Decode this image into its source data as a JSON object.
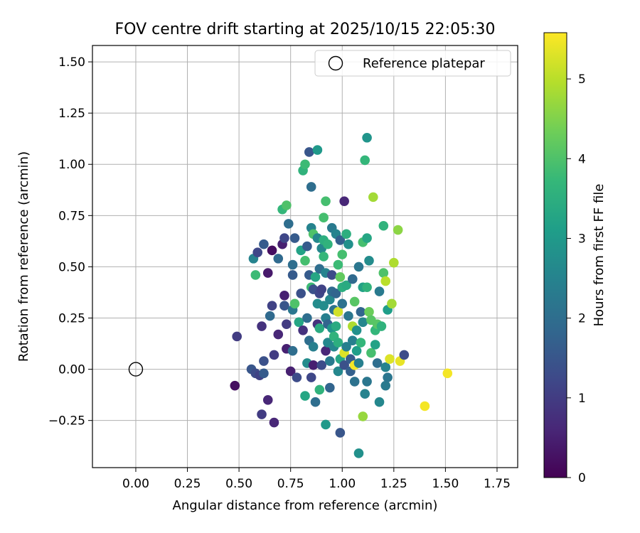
{
  "chart_data": {
    "type": "scatter",
    "title": "FOV centre drift starting at 2025/10/15 22:05:30",
    "xlabel": "Angular distance from reference (arcmin)",
    "ylabel": "Rotation from reference (arcmin)",
    "xlim": [
      -0.21,
      1.85
    ],
    "ylim": [
      -0.48,
      1.58
    ],
    "xticks": [
      0.0,
      0.25,
      0.5,
      0.75,
      1.0,
      1.25,
      1.5,
      1.75
    ],
    "xtick_labels": [
      "0.00",
      "0.25",
      "0.50",
      "0.75",
      "1.00",
      "1.25",
      "1.50",
      "1.75"
    ],
    "yticks": [
      -0.25,
      0.0,
      0.25,
      0.5,
      0.75,
      1.0,
      1.25,
      1.5
    ],
    "ytick_labels": [
      "−0.25",
      "0.00",
      "0.25",
      "0.50",
      "0.75",
      "1.00",
      "1.25",
      "1.50"
    ],
    "grid": true,
    "legend": {
      "position": "top-right",
      "entries": [
        "Reference platepar"
      ]
    },
    "reference_point": {
      "x": 0.0,
      "y": 0.0
    },
    "colorbar": {
      "label": "Hours from first FF file",
      "range": [
        0,
        5.58
      ],
      "ticks": [
        0,
        1,
        2,
        3,
        4,
        5
      ],
      "tick_labels": [
        "0",
        "1",
        "2",
        "3",
        "4",
        "5"
      ],
      "colormap": "viridis",
      "colormap_stops": [
        "#440154",
        "#482878",
        "#3e4989",
        "#31688e",
        "#26828e",
        "#1f9e89",
        "#35b779",
        "#6ece58",
        "#b5de2b",
        "#fde725"
      ]
    },
    "points": [
      [
        0.48,
        -0.08,
        0.2
      ],
      [
        0.49,
        0.16,
        1.0
      ],
      [
        0.57,
        0.54,
        2.5
      ],
      [
        0.58,
        0.46,
        3.8
      ],
      [
        0.59,
        0.57,
        1.2
      ],
      [
        0.61,
        -0.22,
        1.0
      ],
      [
        0.61,
        0.21,
        0.8
      ],
      [
        0.62,
        0.61,
        1.6
      ],
      [
        0.62,
        0.04,
        1.4
      ],
      [
        0.64,
        -0.15,
        0.6
      ],
      [
        0.64,
        0.47,
        0.4
      ],
      [
        0.65,
        0.26,
        1.9
      ],
      [
        0.66,
        0.31,
        1.1
      ],
      [
        0.66,
        0.58,
        0.2
      ],
      [
        0.67,
        0.07,
        1.0
      ],
      [
        0.67,
        -0.26,
        0.6
      ],
      [
        0.69,
        0.17,
        0.6
      ],
      [
        0.69,
        0.54,
        1.9
      ],
      [
        0.71,
        0.61,
        0.5
      ],
      [
        0.71,
        0.78,
        3.7
      ],
      [
        0.72,
        0.36,
        0.5
      ],
      [
        0.72,
        0.31,
        1.5
      ],
      [
        0.72,
        0.64,
        1.2
      ],
      [
        0.73,
        0.8,
        4.0
      ],
      [
        0.73,
        0.1,
        0.5
      ],
      [
        0.73,
        0.22,
        1.0
      ],
      [
        0.74,
        0.71,
        2.0
      ],
      [
        0.75,
        -0.01,
        0.5
      ],
      [
        0.76,
        0.51,
        2.0
      ],
      [
        0.76,
        0.46,
        1.6
      ],
      [
        0.76,
        0.09,
        2.0
      ],
      [
        0.76,
        0.29,
        2.2
      ],
      [
        0.77,
        0.32,
        4.0
      ],
      [
        0.77,
        0.64,
        1.6
      ],
      [
        0.78,
        -0.04,
        1.3
      ],
      [
        0.79,
        0.23,
        3.3
      ],
      [
        0.8,
        0.58,
        3.2
      ],
      [
        0.8,
        0.37,
        1.4
      ],
      [
        0.81,
        0.97,
        3.6
      ],
      [
        0.81,
        0.19,
        0.8
      ],
      [
        0.82,
        0.53,
        3.9
      ],
      [
        0.82,
        1.0,
        3.8
      ],
      [
        0.82,
        -0.13,
        3.3
      ],
      [
        0.83,
        0.6,
        1.6
      ],
      [
        0.83,
        0.25,
        2.0
      ],
      [
        0.83,
        0.03,
        2.7
      ],
      [
        0.84,
        1.06,
        1.5
      ],
      [
        0.84,
        0.14,
        2.0
      ],
      [
        0.84,
        0.46,
        1.6
      ],
      [
        0.85,
        0.4,
        3.8
      ],
      [
        0.85,
        0.69,
        2.5
      ],
      [
        0.85,
        -0.04,
        1.2
      ],
      [
        0.85,
        0.89,
        2.0
      ],
      [
        0.86,
        0.66,
        4.0
      ],
      [
        0.86,
        0.11,
        2.4
      ],
      [
        0.86,
        0.02,
        0.5
      ],
      [
        0.86,
        0.39,
        1.4
      ],
      [
        0.87,
        -0.16,
        2.0
      ],
      [
        0.87,
        0.45,
        3.3
      ],
      [
        0.88,
        1.07,
        3.0
      ],
      [
        0.88,
        0.22,
        0.8
      ],
      [
        0.88,
        0.32,
        2.7
      ],
      [
        0.88,
        0.64,
        2.6
      ],
      [
        0.89,
        0.49,
        2.0
      ],
      [
        0.89,
        -0.1,
        3.6
      ],
      [
        0.89,
        0.37,
        1.2
      ],
      [
        0.89,
        0.2,
        3.4
      ],
      [
        0.9,
        0.39,
        1.1
      ],
      [
        0.9,
        0.59,
        2.6
      ],
      [
        0.9,
        0.02,
        1.3
      ],
      [
        0.91,
        0.74,
        3.9
      ],
      [
        0.91,
        0.55,
        3.7
      ],
      [
        0.91,
        0.63,
        3.5
      ],
      [
        0.91,
        0.31,
        2.7
      ],
      [
        0.92,
        0.82,
        3.9
      ],
      [
        0.92,
        0.09,
        0.6
      ],
      [
        0.92,
        0.25,
        2.4
      ],
      [
        0.92,
        0.47,
        2.5
      ],
      [
        0.92,
        -0.27,
        3.0
      ],
      [
        0.93,
        0.22,
        1.8
      ],
      [
        0.93,
        0.61,
        3.6
      ],
      [
        0.93,
        0.13,
        2.6
      ],
      [
        0.94,
        0.34,
        2.6
      ],
      [
        0.94,
        0.04,
        2.3
      ],
      [
        0.94,
        -0.09,
        1.8
      ],
      [
        0.95,
        0.69,
        2.3
      ],
      [
        0.95,
        0.46,
        1.3
      ],
      [
        0.95,
        0.2,
        2.9
      ],
      [
        0.95,
        0.38,
        1.9
      ],
      [
        0.96,
        0.16,
        3.6
      ],
      [
        0.96,
        0.29,
        2.1
      ],
      [
        0.96,
        0.11,
        2.6
      ],
      [
        0.97,
        0.66,
        2.5
      ],
      [
        0.97,
        0.37,
        1.8
      ],
      [
        0.97,
        0.21,
        3.4
      ],
      [
        0.98,
        0.51,
        3.8
      ],
      [
        0.98,
        -0.01,
        2.6
      ],
      [
        0.98,
        0.13,
        3.5
      ],
      [
        0.98,
        0.28,
        5.2
      ],
      [
        0.99,
        -0.31,
        1.5
      ],
      [
        0.99,
        0.05,
        3.3
      ],
      [
        0.99,
        0.45,
        4.2
      ],
      [
        0.99,
        0.63,
        1.7
      ],
      [
        1.0,
        0.4,
        3.5
      ],
      [
        1.0,
        0.32,
        2.1
      ],
      [
        1.0,
        0.56,
        3.9
      ],
      [
        1.01,
        0.02,
        1.4
      ],
      [
        1.01,
        0.82,
        0.6
      ],
      [
        1.01,
        0.08,
        5.3
      ],
      [
        1.02,
        0.66,
        3.5
      ],
      [
        1.02,
        0.11,
        2.4
      ],
      [
        1.02,
        0.41,
        3.4
      ],
      [
        1.03,
        0.26,
        2.2
      ],
      [
        1.03,
        0.61,
        2.8
      ],
      [
        1.04,
        -0.01,
        1.7
      ],
      [
        1.04,
        0.05,
        1.6
      ],
      [
        1.05,
        0.21,
        4.9
      ],
      [
        1.05,
        0.14,
        2.4
      ],
      [
        1.05,
        0.44,
        1.9
      ],
      [
        1.06,
        0.02,
        5.5
      ],
      [
        1.06,
        -0.06,
        2.1
      ],
      [
        1.06,
        0.33,
        4.1
      ],
      [
        1.07,
        0.19,
        2.8
      ],
      [
        1.07,
        0.09,
        3.1
      ],
      [
        1.08,
        0.03,
        2.4
      ],
      [
        1.08,
        -0.41,
        2.8
      ],
      [
        1.08,
        0.5,
        2.2
      ],
      [
        1.09,
        0.28,
        1.8
      ],
      [
        1.09,
        0.13,
        3.7
      ],
      [
        1.1,
        0.4,
        3.2
      ],
      [
        1.1,
        0.62,
        3.9
      ],
      [
        1.1,
        -0.23,
        4.7
      ],
      [
        1.1,
        0.23,
        2.6
      ],
      [
        1.11,
        1.02,
        3.7
      ],
      [
        1.11,
        -0.12,
        2.5
      ],
      [
        1.12,
        0.4,
        3.6
      ],
      [
        1.12,
        1.13,
        2.9
      ],
      [
        1.12,
        0.64,
        3.3
      ],
      [
        1.12,
        -0.06,
        2.2
      ],
      [
        1.13,
        0.53,
        2.7
      ],
      [
        1.13,
        0.28,
        4.3
      ],
      [
        1.14,
        0.08,
        3.9
      ],
      [
        1.14,
        0.24,
        4.1
      ],
      [
        1.15,
        0.84,
        4.8
      ],
      [
        1.16,
        0.12,
        3.2
      ],
      [
        1.16,
        0.19,
        3.7
      ],
      [
        1.17,
        0.22,
        4.1
      ],
      [
        1.17,
        0.03,
        2.0
      ],
      [
        1.18,
        -0.16,
        2.6
      ],
      [
        1.18,
        0.38,
        2.3
      ],
      [
        1.19,
        0.21,
        3.6
      ],
      [
        1.2,
        0.7,
        3.6
      ],
      [
        1.2,
        0.47,
        4.0
      ],
      [
        1.21,
        0.43,
        5.0
      ],
      [
        1.21,
        -0.08,
        2.3
      ],
      [
        1.21,
        0.01,
        2.5
      ],
      [
        1.22,
        -0.04,
        2.2
      ],
      [
        1.22,
        0.29,
        3.1
      ],
      [
        1.23,
        0.05,
        5.3
      ],
      [
        1.24,
        0.32,
        4.8
      ],
      [
        1.25,
        0.52,
        4.9
      ],
      [
        1.27,
        0.68,
        4.6
      ],
      [
        1.28,
        0.04,
        5.4
      ],
      [
        1.3,
        0.07,
        1.3
      ],
      [
        1.4,
        -0.18,
        5.5
      ],
      [
        1.51,
        -0.02,
        5.5
      ],
      [
        0.56,
        0.0,
        1.5
      ],
      [
        0.58,
        -0.02,
        1.3
      ],
      [
        0.6,
        -0.03,
        1.1
      ],
      [
        0.62,
        -0.02,
        1.6
      ]
    ]
  }
}
